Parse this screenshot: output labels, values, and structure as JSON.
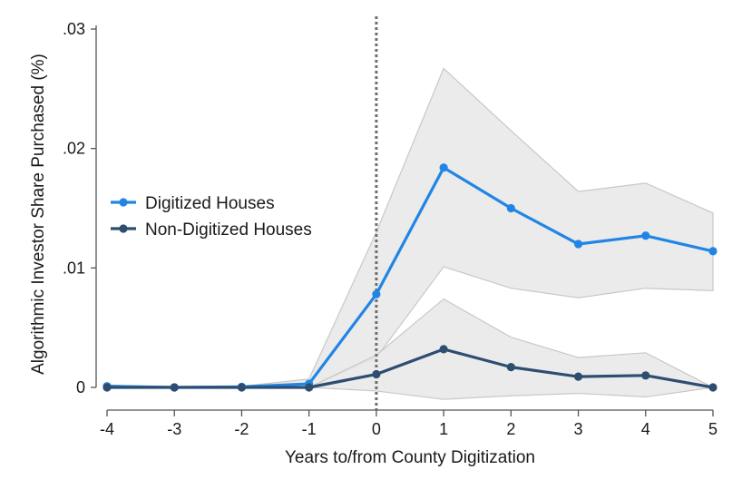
{
  "chart_data": {
    "type": "line",
    "title": "",
    "xlabel": "Years to/from County Digitization",
    "ylabel": "Algorithmic Investor Share Purchased (%)",
    "x": [
      -4,
      -3,
      -2,
      -1,
      0,
      1,
      2,
      3,
      4,
      5
    ],
    "x_tick_labels": [
      "-4",
      "-3",
      "-2",
      "-1",
      "0",
      "1",
      "2",
      "3",
      "4",
      "5"
    ],
    "y_ticks": [
      0,
      0.01,
      0.02,
      0.03
    ],
    "y_tick_labels": [
      "0",
      ".01",
      ".02",
      ".03"
    ],
    "xlim": [
      -4,
      5
    ],
    "ylim": [
      -0.002,
      0.031
    ],
    "grid": false,
    "legend_position": "center-left",
    "reference_line_x": 0,
    "series": [
      {
        "name": "Digitized Houses",
        "color": "#2185e5",
        "values": [
          0.0001,
          0.0,
          5e-05,
          0.0003,
          0.0078,
          0.0184,
          0.015,
          0.012,
          0.0127,
          0.0114
        ],
        "ci_lower": [
          0.0,
          0.0,
          0.0,
          0.0,
          0.0025,
          0.0101,
          0.0083,
          0.0075,
          0.0083,
          0.0081
        ],
        "ci_upper": [
          0.0002,
          0.0,
          0.0001,
          0.0007,
          0.013,
          0.0267,
          0.0215,
          0.0164,
          0.0171,
          0.0146
        ]
      },
      {
        "name": "Non-Digitized Houses",
        "color": "#2d4e70",
        "values": [
          0.0,
          0.0,
          0.0,
          0.0,
          0.0011,
          0.0032,
          0.0017,
          0.0009,
          0.001,
          0.0
        ],
        "ci_lower": [
          0.0,
          0.0,
          0.0,
          0.0,
          -0.0003,
          -0.001,
          -0.0007,
          -0.0005,
          -0.0008,
          0.0
        ],
        "ci_upper": [
          0.0,
          0.0,
          0.0,
          0.0,
          0.0027,
          0.0074,
          0.0042,
          0.0025,
          0.0029,
          0.0
        ]
      }
    ]
  }
}
